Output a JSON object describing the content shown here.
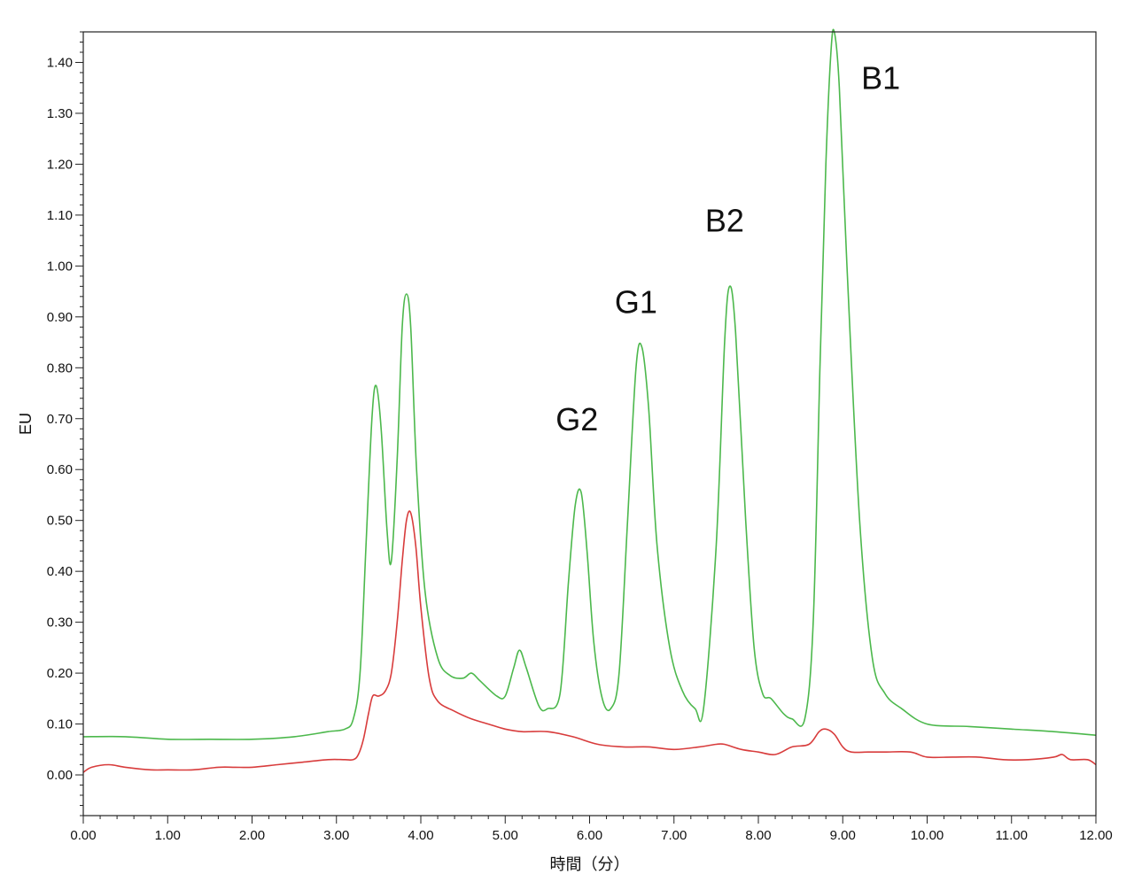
{
  "chart_data": {
    "type": "line",
    "xlabel": "時間（分）",
    "ylabel": "EU",
    "xlim": [
      0,
      12
    ],
    "ylim": [
      -0.08,
      1.46
    ],
    "x_ticks": [
      "0.00",
      "1.00",
      "2.00",
      "3.00",
      "4.00",
      "5.00",
      "6.00",
      "7.00",
      "8.00",
      "9.00",
      "10.00",
      "11.00",
      "12.00"
    ],
    "y_ticks": [
      "0.00",
      "0.10",
      "0.20",
      "0.30",
      "0.40",
      "0.50",
      "0.60",
      "0.70",
      "0.80",
      "0.90",
      "1.00",
      "1.10",
      "1.20",
      "1.30",
      "1.40"
    ],
    "grid": false,
    "colors": {
      "green": "#4cb84c",
      "red": "#d83c3c"
    },
    "series": [
      {
        "color": "green",
        "x": [
          0.0,
          0.5,
          1.0,
          1.5,
          2.0,
          2.5,
          2.9,
          3.1,
          3.2,
          3.28,
          3.35,
          3.42,
          3.47,
          3.53,
          3.6,
          3.65,
          3.72,
          3.78,
          3.83,
          3.88,
          3.95,
          4.05,
          4.2,
          4.35,
          4.5,
          4.6,
          4.7,
          4.9,
          5.0,
          5.1,
          5.17,
          5.25,
          5.4,
          5.5,
          5.65,
          5.75,
          5.83,
          5.9,
          5.97,
          6.05,
          6.15,
          6.25,
          6.35,
          6.45,
          6.55,
          6.62,
          6.7,
          6.8,
          6.95,
          7.1,
          7.25,
          7.35,
          7.5,
          7.6,
          7.66,
          7.73,
          7.85,
          7.95,
          8.05,
          8.15,
          8.3,
          8.4,
          8.55,
          8.65,
          8.73,
          8.8,
          8.86,
          8.9,
          8.96,
          9.05,
          9.2,
          9.35,
          9.5,
          9.7,
          10.0,
          10.5,
          11.0,
          11.5,
          12.0
        ],
        "y": [
          0.075,
          0.075,
          0.07,
          0.07,
          0.07,
          0.075,
          0.085,
          0.09,
          0.11,
          0.2,
          0.45,
          0.7,
          0.765,
          0.68,
          0.48,
          0.42,
          0.62,
          0.88,
          0.945,
          0.88,
          0.6,
          0.36,
          0.23,
          0.195,
          0.19,
          0.2,
          0.185,
          0.155,
          0.155,
          0.21,
          0.245,
          0.21,
          0.135,
          0.13,
          0.16,
          0.38,
          0.53,
          0.555,
          0.44,
          0.26,
          0.15,
          0.13,
          0.2,
          0.5,
          0.8,
          0.84,
          0.72,
          0.45,
          0.25,
          0.165,
          0.13,
          0.13,
          0.45,
          0.85,
          0.96,
          0.87,
          0.5,
          0.25,
          0.16,
          0.15,
          0.12,
          0.11,
          0.11,
          0.3,
          0.8,
          1.2,
          1.42,
          1.46,
          1.35,
          1.0,
          0.5,
          0.23,
          0.16,
          0.13,
          0.1,
          0.095,
          0.09,
          0.085,
          0.078
        ]
      },
      {
        "color": "red",
        "x": [
          0.0,
          0.1,
          0.3,
          0.5,
          0.8,
          1.0,
          1.3,
          1.6,
          1.8,
          2.0,
          2.3,
          2.6,
          2.9,
          3.1,
          3.2,
          3.26,
          3.32,
          3.38,
          3.43,
          3.5,
          3.58,
          3.65,
          3.72,
          3.78,
          3.83,
          3.88,
          3.94,
          4.0,
          4.1,
          4.2,
          4.4,
          4.6,
          4.8,
          5.0,
          5.2,
          5.5,
          5.8,
          6.1,
          6.4,
          6.7,
          7.0,
          7.3,
          7.5,
          7.6,
          7.8,
          8.0,
          8.2,
          8.4,
          8.6,
          8.72,
          8.8,
          8.9,
          9.0,
          9.1,
          9.3,
          9.5,
          9.8,
          10.0,
          10.3,
          10.6,
          10.9,
          11.2,
          11.5,
          11.6,
          11.7,
          11.9,
          12.0
        ],
        "y": [
          0.005,
          0.015,
          0.02,
          0.015,
          0.01,
          0.01,
          0.01,
          0.015,
          0.015,
          0.015,
          0.02,
          0.025,
          0.03,
          0.03,
          0.03,
          0.04,
          0.07,
          0.12,
          0.155,
          0.155,
          0.165,
          0.2,
          0.3,
          0.42,
          0.5,
          0.515,
          0.45,
          0.33,
          0.19,
          0.145,
          0.125,
          0.11,
          0.1,
          0.09,
          0.085,
          0.085,
          0.075,
          0.06,
          0.055,
          0.055,
          0.05,
          0.055,
          0.06,
          0.06,
          0.05,
          0.045,
          0.04,
          0.055,
          0.06,
          0.085,
          0.09,
          0.08,
          0.055,
          0.045,
          0.045,
          0.045,
          0.045,
          0.035,
          0.035,
          0.035,
          0.03,
          0.03,
          0.035,
          0.04,
          0.03,
          0.03,
          0.02
        ]
      }
    ],
    "peak_labels": [
      {
        "text": "G2",
        "x": 5.85,
        "y": 0.7
      },
      {
        "text": "G1",
        "x": 6.55,
        "y": 0.93
      },
      {
        "text": "B2",
        "x": 7.6,
        "y": 1.09
      },
      {
        "text": "B1",
        "x": 9.45,
        "y": 1.37
      }
    ]
  }
}
